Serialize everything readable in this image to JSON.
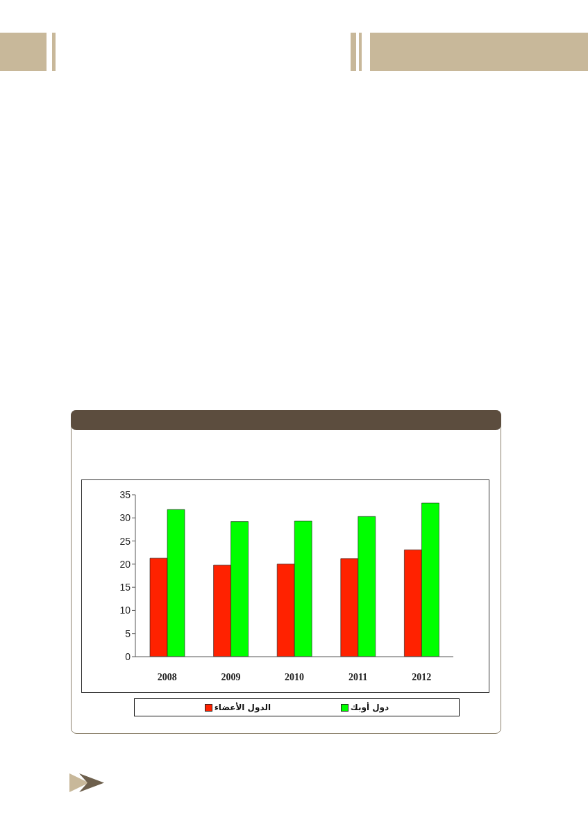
{
  "chart_data": {
    "type": "bar",
    "categories": [
      "2008",
      "2009",
      "2010",
      "2011",
      "2012"
    ],
    "series": [
      {
        "name": "الدول الأعضاء",
        "color": "#ff2200",
        "values": [
          21.3,
          19.8,
          20.0,
          21.2,
          23.1
        ]
      },
      {
        "name": "دول أوبك",
        "color": "#00ff00",
        "values": [
          31.8,
          29.2,
          29.3,
          30.3,
          33.2
        ]
      }
    ],
    "ylim": [
      0,
      35
    ],
    "yticks": [
      0,
      5,
      10,
      15,
      20,
      25,
      30,
      35
    ],
    "legend": "bottom"
  }
}
